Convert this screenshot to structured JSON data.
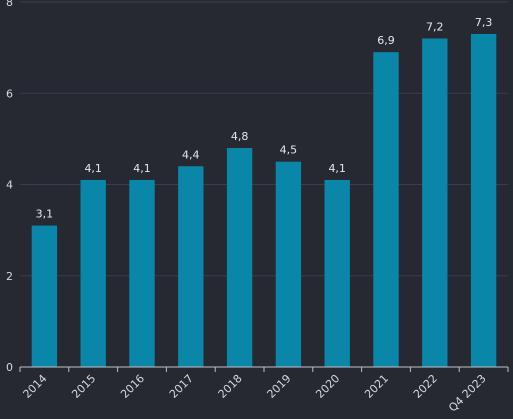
{
  "chart_data": {
    "type": "bar",
    "title": "",
    "xlabel": "",
    "ylabel": "",
    "categories": [
      "2014",
      "2015",
      "2016",
      "2017",
      "2018",
      "2019",
      "2020",
      "2021",
      "2022",
      "Q4 2023"
    ],
    "values": [
      3.1,
      4.1,
      4.1,
      4.4,
      4.8,
      4.5,
      4.1,
      6.9,
      7.2,
      7.3
    ],
    "data_labels": [
      "3,1",
      "4,1",
      "4,1",
      "4,4",
      "4,8",
      "4,5",
      "4,1",
      "6,9",
      "7,2",
      "7,3"
    ],
    "ylim": [
      0,
      8
    ],
    "y_ticks": [
      "0",
      "2",
      "4",
      "6",
      "8"
    ],
    "grid": true,
    "legend": "none",
    "colors": {
      "background": "#262932",
      "bar": "#0a87a8",
      "grid": "#3a3e48",
      "text": "#d6d8dc"
    }
  }
}
